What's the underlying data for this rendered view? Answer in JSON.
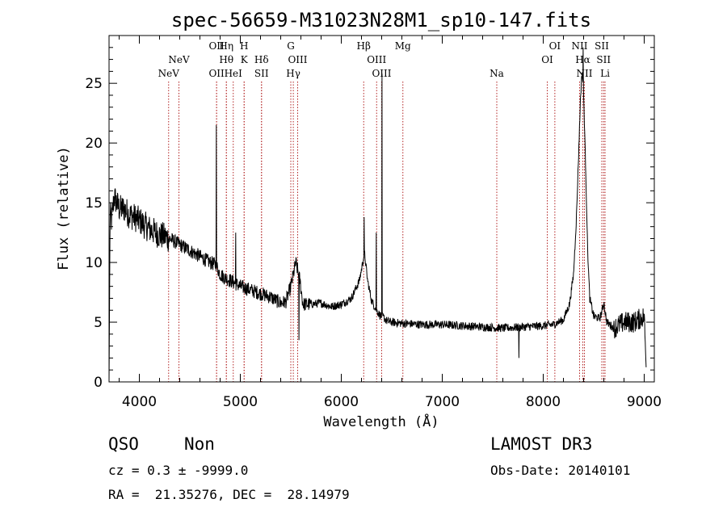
{
  "chart_data": {
    "type": "line",
    "title": "spec-56659-M31023N28M1_sp10-147.fits",
    "xlabel": "Wavelength (Å)",
    "ylabel": "Flux (relative)",
    "xlim": [
      3700,
      9100
    ],
    "ylim": [
      0,
      29
    ],
    "xticks": [
      4000,
      5000,
      6000,
      7000,
      8000,
      9000
    ],
    "yticks": [
      0,
      5,
      10,
      15,
      20,
      25
    ],
    "grid": false,
    "series": [
      {
        "anchors": [
          [
            3700,
            0
          ],
          [
            3710,
            14
          ],
          [
            3725,
            13.5
          ],
          [
            3750,
            15.5
          ],
          [
            3800,
            14.5
          ],
          [
            3850,
            14.5
          ],
          [
            3900,
            14
          ],
          [
            3950,
            13.8
          ],
          [
            4000,
            13.5
          ],
          [
            4100,
            12.8
          ],
          [
            4200,
            12.3
          ],
          [
            4300,
            12
          ],
          [
            4400,
            11.5
          ],
          [
            4500,
            11
          ],
          [
            4600,
            10.5
          ],
          [
            4700,
            10
          ],
          [
            4760,
            9.8
          ],
          [
            4800,
            9
          ],
          [
            4850,
            8.7
          ],
          [
            4900,
            8.5
          ],
          [
            5000,
            8
          ],
          [
            5100,
            7.7
          ],
          [
            5200,
            7.4
          ],
          [
            5300,
            7.1
          ],
          [
            5400,
            6.6
          ],
          [
            5450,
            6.7
          ],
          [
            5500,
            8
          ],
          [
            5550,
            10
          ],
          [
            5590,
            8.5
          ],
          [
            5620,
            6.5
          ],
          [
            5700,
            6.5
          ],
          [
            5800,
            6.6
          ],
          [
            5900,
            6.3
          ],
          [
            6000,
            6.5
          ],
          [
            6100,
            7
          ],
          [
            6180,
            8.5
          ],
          [
            6230,
            10.8
          ],
          [
            6260,
            8.5
          ],
          [
            6300,
            6.8
          ],
          [
            6350,
            6
          ],
          [
            6380,
            5.6
          ],
          [
            6420,
            5.4
          ],
          [
            6450,
            5.1
          ],
          [
            6500,
            5
          ],
          [
            6600,
            4.9
          ],
          [
            6800,
            4.8
          ],
          [
            7000,
            4.8
          ],
          [
            7200,
            4.7
          ],
          [
            7400,
            4.6
          ],
          [
            7600,
            4.5
          ],
          [
            7800,
            4.6
          ],
          [
            8000,
            4.7
          ],
          [
            8100,
            4.8
          ],
          [
            8200,
            5.2
          ],
          [
            8260,
            6.5
          ],
          [
            8300,
            9
          ],
          [
            8330,
            14
          ],
          [
            8350,
            19
          ],
          [
            8370,
            24
          ],
          [
            8385,
            26
          ],
          [
            8400,
            24
          ],
          [
            8420,
            18
          ],
          [
            8440,
            11
          ],
          [
            8460,
            7
          ],
          [
            8500,
            5.5
          ],
          [
            8560,
            5.3
          ],
          [
            8600,
            6.5
          ],
          [
            8630,
            5
          ],
          [
            8700,
            4.5
          ],
          [
            8800,
            5
          ],
          [
            8900,
            5
          ],
          [
            9000,
            5.5
          ],
          [
            9020,
            1
          ]
        ],
        "spikes": [
          [
            3718,
            14
          ],
          [
            4763,
            21.5
          ],
          [
            4955,
            12.5
          ],
          [
            5582,
            3.5
          ],
          [
            6226,
            13.8
          ],
          [
            6345,
            12.5
          ],
          [
            6402,
            25.8
          ],
          [
            7760,
            2
          ],
          [
            8395,
            28
          ],
          [
            8602,
            6.7
          ]
        ]
      }
    ],
    "lines": [
      {
        "x": 4290,
        "label": "NeV",
        "row": 3
      },
      {
        "x": 4392,
        "label": "NeV",
        "row": 2
      },
      {
        "x": 4765,
        "label": "OII",
        "row": 1
      },
      {
        "x": 4765,
        "label": "OII",
        "row": 3
      },
      {
        "x": 4862,
        "label": "Hη",
        "row": 1
      },
      {
        "x": 4862,
        "label": "Hθ",
        "row": 2
      },
      {
        "x": 4930,
        "label": "HeI",
        "row": 3
      },
      {
        "x": 5038,
        "label": "H",
        "row": 1
      },
      {
        "x": 5038,
        "label": "K",
        "row": 2
      },
      {
        "x": 5210,
        "label": "Hδ",
        "row": 2
      },
      {
        "x": 5210,
        "label": "SII",
        "row": 3
      },
      {
        "x": 5500,
        "label": "G",
        "row": 1
      },
      {
        "x": 5568,
        "label": "OIII",
        "row": 2
      },
      {
        "x": 5525,
        "label": "Hγ",
        "row": 3
      },
      {
        "x": 6222,
        "label": "Hβ",
        "row": 1
      },
      {
        "x": 6350,
        "label": "OIII",
        "row": 2
      },
      {
        "x": 6400,
        "label": "OIII",
        "row": 3
      },
      {
        "x": 6610,
        "label": "Mg",
        "row": 1
      },
      {
        "x": 7540,
        "label": "Na",
        "row": 3
      },
      {
        "x": 8040,
        "label": "OI",
        "row": 2
      },
      {
        "x": 8115,
        "label": "OI",
        "row": 1
      },
      {
        "x": 8360,
        "label": "NII",
        "row": 1
      },
      {
        "x": 8392,
        "label": "Hα",
        "row": 2
      },
      {
        "x": 8408,
        "label": "NII",
        "row": 3
      },
      {
        "x": 8580,
        "label": "SII",
        "row": 1
      },
      {
        "x": 8598,
        "label": "SII",
        "row": 2
      },
      {
        "x": 8612,
        "label": "Li",
        "row": 3
      }
    ],
    "colors": {
      "spectrum": "#000000",
      "lines": "#b22222",
      "axes": "#000000"
    }
  },
  "info": {
    "class": "QSO",
    "subclass": "Non",
    "survey": "LAMOST DR3",
    "cz": "cz = 0.3 ± -9999.0",
    "obs_date": "Obs-Date: 20140101",
    "coords": "RA =  21.35276, DEC =  28.14979"
  }
}
